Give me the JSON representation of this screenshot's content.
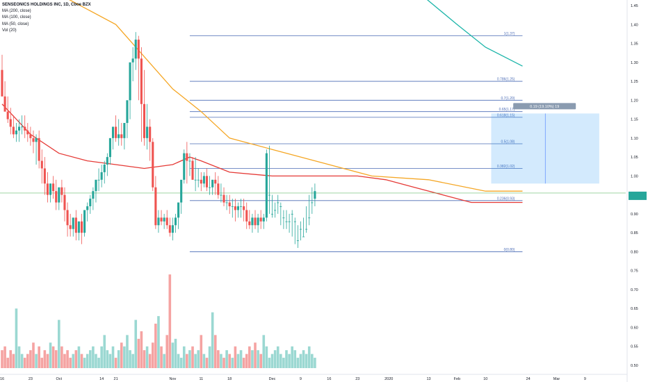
{
  "chart_data": {
    "type": "candlestick",
    "symbol_line": "SENSEONICS HOLDINGS INC, 1D, Cboe BZX",
    "indicators": [
      "MA (200, close)",
      "MA (100, close)",
      "MA (50, close)",
      "Vol (20)"
    ],
    "price_axis": {
      "range": [
        0.48,
        1.475
      ],
      "ticks": [
        "1.45",
        "1.40",
        "1.35",
        "1.30",
        "1.25",
        "1.20",
        "1.15",
        "1.10",
        "1.05",
        "1.00",
        "0.95",
        "0.90",
        "0.85",
        "0.80",
        "0.75",
        "0.70",
        "0.65",
        "0.60",
        "0.55",
        "0.50"
      ],
      "tick_values": [
        1.45,
        1.4,
        1.35,
        1.3,
        1.25,
        1.2,
        1.15,
        1.1,
        1.05,
        1.0,
        0.95,
        0.9,
        0.85,
        0.8,
        0.75,
        0.7,
        0.65,
        0.6,
        0.55,
        0.5
      ]
    },
    "time_axis": {
      "labels": [
        "16",
        "23",
        "Oct",
        "14",
        "21",
        "Nov",
        "11",
        "18",
        "Dec",
        "9",
        "16",
        "23",
        "2020",
        "13",
        "Feb",
        "10",
        "24",
        "Mar",
        "9"
      ],
      "label_bar_index": [
        0,
        10,
        20,
        35,
        40,
        60,
        70,
        80,
        95,
        105,
        115,
        125,
        136,
        150,
        160,
        170,
        185,
        195,
        205
      ]
    },
    "candles": {
      "colors": {
        "up": "#26a69a",
        "down": "#ef5350"
      },
      "open": [
        1.28,
        1.21,
        1.17,
        1.15,
        1.13,
        1.11,
        1.12,
        1.13,
        1.13,
        1.12,
        1.11,
        1.1,
        1.09,
        1.1,
        1.04,
        1.02,
        0.98,
        0.95,
        0.98,
        0.96,
        0.93,
        0.97,
        0.95,
        0.91,
        0.87,
        0.86,
        0.89,
        0.85,
        0.88,
        0.85,
        0.91,
        0.92,
        0.94,
        0.96,
        0.99,
        0.99,
        1.01,
        1.03,
        1.05,
        1.1,
        1.13,
        1.1,
        1.11,
        1.1,
        1.14,
        1.2,
        1.3,
        1.31,
        1.36,
        1.31,
        1.19,
        1.1,
        1.13,
        1.09,
        0.97,
        0.87,
        0.89,
        0.88,
        0.89,
        0.87,
        0.85,
        0.87,
        0.89,
        0.93,
        0.99,
        1.06,
        1.04,
        1.04,
        0.99,
        0.99,
        0.99,
        0.98,
        1.0,
        0.97,
        0.97,
        0.99,
        0.98,
        0.95,
        0.95,
        0.93,
        0.93,
        0.92,
        0.92,
        0.91,
        0.92,
        0.92,
        0.91,
        0.88,
        0.87,
        0.89,
        0.87,
        0.89,
        0.88,
        0.89,
        0.95,
        0.9,
        0.91,
        0.93,
        0.92,
        0.89,
        0.88,
        0.88,
        0.9,
        0.88,
        0.83,
        0.86,
        0.84,
        0.86,
        0.89,
        0.93,
        0.94
      ],
      "high": [
        1.32,
        1.25,
        1.21,
        1.18,
        1.16,
        1.14,
        1.15,
        1.16,
        1.16,
        1.14,
        1.13,
        1.12,
        1.11,
        1.12,
        1.07,
        1.05,
        1.01,
        0.98,
        1.0,
        0.99,
        0.96,
        0.99,
        0.97,
        0.93,
        0.9,
        0.89,
        0.91,
        0.88,
        0.9,
        0.88,
        0.93,
        0.95,
        0.97,
        0.99,
        1.02,
        1.03,
        1.04,
        1.06,
        1.09,
        1.13,
        1.16,
        1.15,
        1.14,
        1.14,
        1.18,
        1.24,
        1.34,
        1.38,
        1.37,
        1.34,
        1.28,
        1.19,
        1.15,
        1.1,
        1.0,
        0.91,
        0.91,
        0.9,
        0.91,
        0.89,
        0.89,
        0.9,
        0.91,
        0.96,
        1.07,
        1.09,
        1.06,
        1.05,
        1.05,
        1.02,
        1.01,
        1.01,
        1.02,
        1.0,
        0.99,
        1.01,
        1.0,
        0.98,
        0.97,
        0.95,
        0.95,
        0.94,
        0.94,
        0.93,
        0.94,
        0.94,
        0.93,
        0.91,
        0.9,
        0.91,
        0.9,
        0.91,
        0.9,
        1.07,
        1.08,
        0.95,
        0.93,
        0.95,
        0.93,
        0.91,
        0.91,
        0.9,
        0.91,
        0.89,
        0.87,
        0.88,
        0.89,
        0.92,
        0.95,
        0.97,
        0.98
      ],
      "low": [
        1.24,
        1.17,
        1.14,
        1.11,
        1.1,
        1.09,
        1.09,
        1.11,
        1.1,
        1.09,
        1.08,
        1.06,
        1.03,
        1.02,
        0.98,
        0.95,
        0.93,
        0.93,
        0.94,
        0.91,
        0.91,
        0.93,
        0.88,
        0.84,
        0.84,
        0.84,
        0.83,
        0.83,
        0.82,
        0.84,
        0.88,
        0.9,
        0.91,
        0.93,
        0.96,
        0.97,
        0.98,
        1.0,
        1.03,
        1.07,
        1.09,
        1.08,
        1.08,
        1.07,
        1.1,
        1.15,
        1.25,
        1.28,
        1.2,
        1.09,
        1.08,
        1.07,
        1.04,
        0.96,
        0.86,
        0.85,
        0.87,
        0.86,
        0.86,
        0.84,
        0.83,
        0.85,
        0.86,
        0.9,
        0.98,
        0.98,
        1.0,
        0.99,
        0.96,
        0.97,
        0.96,
        0.97,
        0.96,
        0.95,
        0.95,
        0.95,
        0.94,
        0.93,
        0.92,
        0.91,
        0.9,
        0.89,
        0.88,
        0.89,
        0.89,
        0.88,
        0.86,
        0.86,
        0.85,
        0.86,
        0.85,
        0.86,
        0.86,
        0.88,
        0.9,
        0.89,
        0.89,
        0.9,
        0.87,
        0.86,
        0.86,
        0.85,
        0.84,
        0.82,
        0.81,
        0.83,
        0.84,
        0.85,
        0.87,
        0.9,
        0.92
      ],
      "close": [
        1.21,
        1.17,
        1.15,
        1.13,
        1.11,
        1.12,
        1.13,
        1.13,
        1.12,
        1.11,
        1.1,
        1.09,
        1.1,
        1.04,
        1.02,
        0.98,
        0.95,
        0.98,
        0.96,
        0.93,
        0.97,
        0.95,
        0.91,
        0.87,
        0.86,
        0.89,
        0.85,
        0.88,
        0.85,
        0.91,
        0.92,
        0.94,
        0.96,
        0.99,
        0.99,
        1.01,
        1.03,
        1.05,
        1.1,
        1.13,
        1.1,
        1.11,
        1.1,
        1.14,
        1.2,
        1.3,
        1.31,
        1.36,
        1.31,
        1.19,
        1.1,
        1.13,
        1.09,
        0.97,
        0.87,
        0.89,
        0.88,
        0.89,
        0.87,
        0.85,
        0.87,
        0.89,
        0.93,
        0.99,
        1.06,
        1.04,
        1.04,
        0.99,
        0.99,
        0.99,
        0.98,
        1.0,
        0.97,
        0.97,
        0.99,
        0.98,
        0.95,
        0.95,
        0.93,
        0.93,
        0.92,
        0.92,
        0.91,
        0.92,
        0.92,
        0.91,
        0.88,
        0.87,
        0.89,
        0.87,
        0.89,
        0.88,
        0.89,
        1.06,
        0.95,
        0.9,
        0.91,
        0.93,
        0.92,
        0.89,
        0.88,
        0.88,
        0.9,
        0.88,
        0.83,
        0.86,
        0.84,
        0.86,
        0.89,
        0.93,
        0.96
      ]
    },
    "volume": {
      "axis_note": "volume pane shares the price scale from 0.50 to 0.75",
      "values": [
        0.54,
        0.55,
        0.52,
        0.54,
        0.53,
        0.65,
        0.55,
        0.53,
        0.52,
        0.53,
        0.54,
        0.56,
        0.53,
        0.55,
        0.52,
        0.54,
        0.53,
        0.56,
        0.55,
        0.54,
        0.62,
        0.55,
        0.53,
        0.54,
        0.52,
        0.53,
        0.54,
        0.55,
        0.53,
        0.52,
        0.53,
        0.54,
        0.55,
        0.53,
        0.52,
        0.55,
        0.58,
        0.54,
        0.53,
        0.55,
        0.52,
        0.54,
        0.56,
        0.55,
        0.58,
        0.54,
        0.53,
        0.62,
        0.57,
        0.59,
        0.54,
        0.55,
        0.53,
        0.56,
        0.61,
        0.63,
        0.55,
        0.53,
        0.58,
        0.74,
        0.56,
        0.57,
        0.53,
        0.52,
        0.55,
        0.53,
        0.54,
        0.55,
        0.53,
        0.54,
        0.58,
        0.53,
        0.52,
        0.55,
        0.64,
        0.58,
        0.54,
        0.53,
        0.52,
        0.54,
        0.53,
        0.52,
        0.55,
        0.53,
        0.54,
        0.52,
        0.53,
        0.55,
        0.54,
        0.56,
        0.54,
        0.53,
        0.58,
        0.55,
        0.52,
        0.53,
        0.54,
        0.55,
        0.53,
        0.52,
        0.54,
        0.53,
        0.55,
        0.54,
        0.52,
        0.53,
        0.54,
        0.53,
        0.55,
        0.53,
        0.52
      ]
    },
    "moving_averages": [
      {
        "name": "MA (200, close)",
        "color": "#1cb5a9",
        "points": [
          [
            148,
            1.475
          ],
          [
            160,
            1.4
          ],
          [
            170,
            1.34
          ],
          [
            183,
            1.29
          ]
        ]
      },
      {
        "name": "MA (100, close)",
        "color": "#f5a623",
        "points": [
          [
            0,
            1.53
          ],
          [
            20,
            1.48
          ],
          [
            40,
            1.4
          ],
          [
            60,
            1.23
          ],
          [
            70,
            1.17
          ],
          [
            80,
            1.1
          ],
          [
            95,
            1.07
          ],
          [
            115,
            1.03
          ],
          [
            130,
            1.0
          ],
          [
            150,
            0.99
          ],
          [
            170,
            0.96
          ],
          [
            183,
            0.96
          ]
        ]
      },
      {
        "name": "MA (50, close)",
        "color": "#e53935",
        "points": [
          [
            0,
            1.19
          ],
          [
            10,
            1.11
          ],
          [
            20,
            1.06
          ],
          [
            30,
            1.04
          ],
          [
            40,
            1.03
          ],
          [
            50,
            1.02
          ],
          [
            60,
            1.03
          ],
          [
            66,
            1.05
          ],
          [
            70,
            1.04
          ],
          [
            80,
            1.01
          ],
          [
            95,
            1.0
          ],
          [
            110,
            1.0
          ],
          [
            125,
            1.0
          ],
          [
            135,
            0.99
          ],
          [
            145,
            0.97
          ],
          [
            155,
            0.95
          ],
          [
            165,
            0.93
          ],
          [
            175,
            0.93
          ],
          [
            183,
            0.93
          ]
        ]
      }
    ],
    "fibonacci": {
      "bar_start": 66,
      "bar_end": 183,
      "color": "#4a6bb5",
      "levels": [
        {
          "label": "1(1.37)",
          "value": 1.37
        },
        {
          "label": "0.786(1.25)",
          "value": 1.25
        },
        {
          "label": "0.7(1.20)",
          "value": 1.2
        },
        {
          "label": "0.65(1.17)",
          "value": 1.17
        },
        {
          "label": "0.618(1.15)",
          "value": 1.155
        },
        {
          "label": "0.5(1.08)",
          "value": 1.085
        },
        {
          "label": "0.382(1.02)",
          "value": 1.02
        },
        {
          "label": "0.236(0.93)",
          "value": 0.935
        },
        {
          "label": "0(0.80)",
          "value": 0.8
        }
      ]
    },
    "measure_box": {
      "bar_start": 172,
      "bar_end": 210,
      "price_top": 1.165,
      "price_bottom": 0.98,
      "label": "0.19 (19.10%) 19"
    },
    "last_price_line": {
      "value": 0.955,
      "color": "#66bb6a"
    }
  }
}
